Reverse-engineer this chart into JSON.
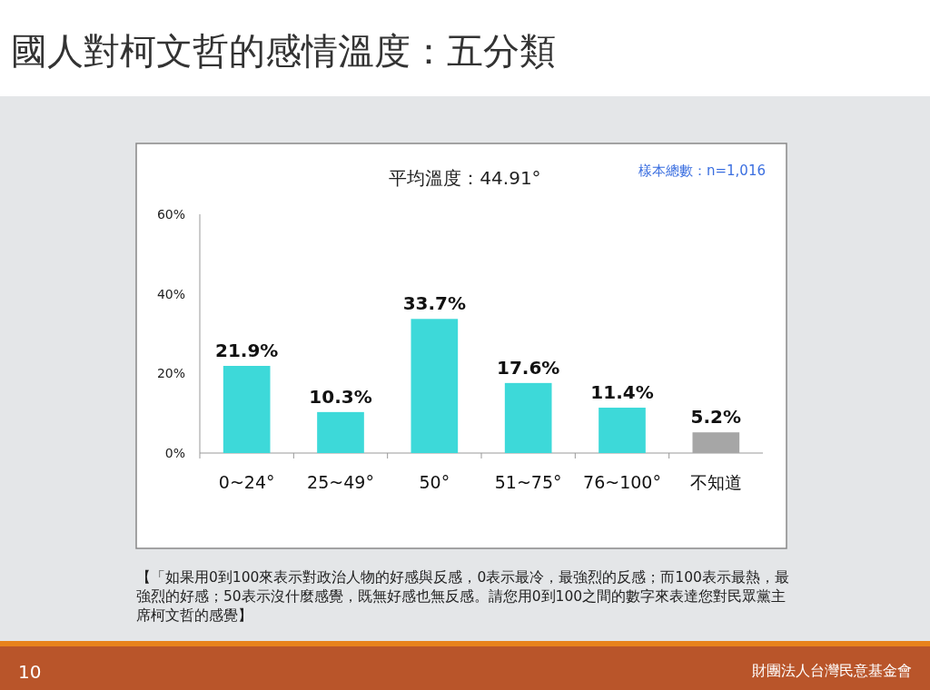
{
  "chart_data": {
    "type": "bar",
    "title": "國人對柯文哲的感情溫度：五分類",
    "subtitle": "平均溫度：44.91°",
    "categories": [
      "0~24°",
      "25~49°",
      "50°",
      "51~75°",
      "76~100°",
      "不知道"
    ],
    "values": [
      21.9,
      10.3,
      33.7,
      17.6,
      11.4,
      5.2
    ],
    "value_labels": [
      "21.9%",
      "10.3%",
      "33.7%",
      "17.6%",
      "11.4%",
      "5.2%"
    ],
    "colors": [
      "#3dd9d9",
      "#3dd9d9",
      "#3dd9d9",
      "#3dd9d9",
      "#3dd9d9",
      "#a6a6a6"
    ],
    "ylim": [
      0,
      60
    ],
    "yticks": [
      {
        "value": 0,
        "label": "0%"
      },
      {
        "value": 20,
        "label": "20%"
      },
      {
        "value": 40,
        "label": "40%"
      },
      {
        "value": 60,
        "label": "60%"
      }
    ],
    "grid": false,
    "annotations": [
      "樣本總數：n=1,016",
      "【「如果用0到100來表示對政治人物的好感與反感，0表示最冷，最強烈的反感；而100表示最熱，最強烈的好感；50表示沒什麼感覺，既無好感也無反感。請您用0到100之間的數字來表達您對民眾黨主席柯文哲的感覺】",
      "10",
      "財團法人台灣民意基金會"
    ]
  }
}
